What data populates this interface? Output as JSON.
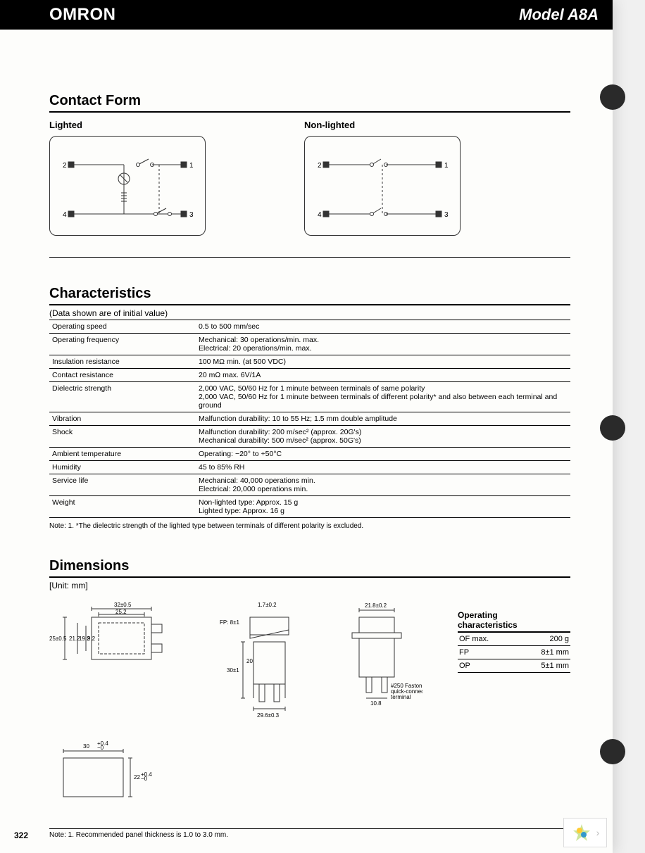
{
  "header": {
    "brand": "OMRON",
    "model": "Model A8A"
  },
  "contactForm": {
    "title": "Contact Form",
    "lighted_label": "Lighted",
    "nonlighted_label": "Non-lighted",
    "terminals": {
      "t1": "1",
      "t2": "2",
      "t3": "3",
      "t4": "4"
    }
  },
  "characteristics": {
    "title": "Characteristics",
    "subtitle": "(Data shown are of initial value)",
    "rows": [
      {
        "label": "Operating speed",
        "value": "0.5 to 500 mm/sec"
      },
      {
        "label": "Operating frequency",
        "value": "Mechanical: 30 operations/min. max.\nElectrical: 20 operations/min. max."
      },
      {
        "label": "Insulation resistance",
        "value": "100 MΩ min. (at 500 VDC)"
      },
      {
        "label": "Contact resistance",
        "value": "20 mΩ max. 6V/1A"
      },
      {
        "label": "Dielectric strength",
        "value": "2,000 VAC, 50/60 Hz for 1 minute between terminals of same polarity\n2,000 VAC, 50/60 Hz for 1 minute between terminals of different polarity* and also between each terminal and ground"
      },
      {
        "label": "Vibration",
        "value": "Malfunction durability: 10 to 55 Hz; 1.5 mm double amplitude"
      },
      {
        "label": "Shock",
        "value": "Malfunction durability: 200 m/sec² (approx. 20G's)\nMechanical durability: 500 m/sec² (approx. 50G's)"
      },
      {
        "label": "Ambient temperature",
        "value": "Operating: −20° to +50°C"
      },
      {
        "label": "Humidity",
        "value": "45 to 85% RH"
      },
      {
        "label": "Service life",
        "value": "Mechanical: 40,000 operations min.\nElectrical: 20,000 operations min."
      },
      {
        "label": "Weight",
        "value": "Non-lighted type: Approx. 15 g\nLighted type: Approx. 16 g"
      }
    ],
    "note": "Note: 1. *The dielectric strength of the lighted type between terminals of different polarity is excluded."
  },
  "dimensions": {
    "title": "Dimensions",
    "unit": "[Unit: mm]",
    "labels": {
      "w32": "32±0.5",
      "w252": "25.2",
      "h25": "25±0.5",
      "h212": "21.2",
      "h192": "19.2",
      "h92": "9.2",
      "t17": "1.7±0.2",
      "fp8": "FP: 8±1",
      "h30": "30±1",
      "h20": "20",
      "w296": "29.6±0.3",
      "w218": "21.8±0.2",
      "w108": "10.8",
      "faston": "#250 Faston\nquick-connect\nterminal",
      "w30": "30",
      "tol04": "+0.4\n−0",
      "h22": "22"
    },
    "note": "Note: 1. Recommended panel thickness is 1.0 to 3.0 mm."
  },
  "opchar": {
    "title": "Operating\ncharacteristics",
    "rows": [
      {
        "label": "OF max.",
        "value": "200 g"
      },
      {
        "label": "FP",
        "value": "8±1 mm"
      },
      {
        "label": "OP",
        "value": "5±1 mm"
      }
    ]
  },
  "page_number": "322"
}
